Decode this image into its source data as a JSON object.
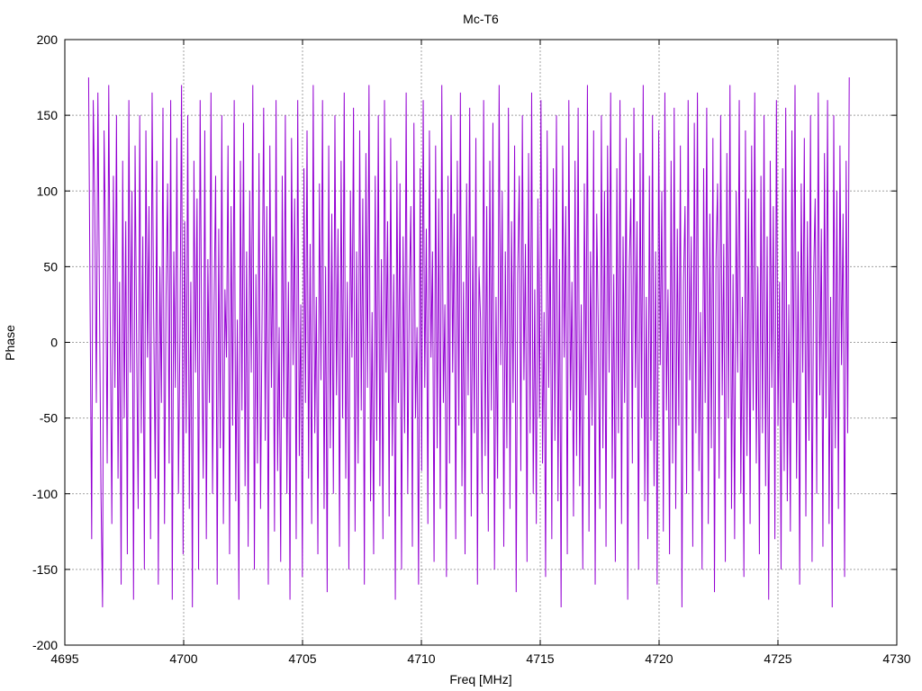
{
  "chart_data": {
    "type": "line",
    "title": "Mc-T6",
    "xlabel": "Freq [MHz]",
    "ylabel": "Phase",
    "xlim": [
      4695,
      4730
    ],
    "ylim": [
      -200,
      200
    ],
    "xticks": [
      4695,
      4700,
      4705,
      4710,
      4715,
      4720,
      4725,
      4730
    ],
    "yticks": [
      -200,
      -150,
      -100,
      -50,
      0,
      50,
      100,
      150,
      200
    ],
    "grid": true,
    "legend": "none",
    "series": [
      {
        "color": "#9400d3",
        "x_start": 4696.0,
        "x_end": 4728.0,
        "x_step": 0.05,
        "note_values": "approximate; signal wraps rapidly between -180 and 180 degrees",
        "values": [
          175,
          20,
          -130,
          160,
          90,
          -40,
          165,
          30,
          -100,
          -175,
          140,
          60,
          -80,
          170,
          10,
          -120,
          110,
          -30,
          150,
          -90,
          40,
          -160,
          120,
          -50,
          80,
          -140,
          160,
          -20,
          100,
          -170,
          130,
          0,
          -110,
          150,
          -60,
          70,
          -150,
          140,
          -10,
          90,
          -130,
          165,
          20,
          -90,
          120,
          -160,
          50,
          -40,
          155,
          -120,
          30,
          105,
          -80,
          160,
          -170,
          60,
          -30,
          135,
          -100,
          10,
          170,
          -140,
          80,
          -60,
          150,
          -110,
          40,
          -175,
          120,
          -20,
          95,
          -150,
          160,
          0,
          -90,
          140,
          -130,
          55,
          -40,
          165,
          -100,
          25,
          110,
          -160,
          75,
          -70,
          150,
          -120,
          35,
          -10,
          130,
          -140,
          90,
          -55,
          160,
          -105,
          15,
          -170,
          120,
          -45,
          145,
          -95,
          60,
          -135,
          100,
          -20,
          170,
          -150,
          45,
          -80,
          125,
          -110,
          20,
          155,
          -65,
          90,
          -160,
          130,
          -30,
          70,
          -125,
          160,
          -85,
          10,
          -145,
          110,
          -50,
          150,
          -100,
          40,
          -170,
          135,
          -15,
          95,
          -130,
          160,
          -75,
          25,
          -155,
          115,
          -40,
          140,
          -90,
          65,
          -120,
          170,
          -60,
          30,
          -140,
          105,
          -25,
          160,
          -110,
          50,
          -165,
          130,
          -70,
          85,
          -100,
          150,
          -35,
          75,
          -135,
          120,
          -50,
          165,
          -90,
          40,
          -150,
          100,
          -10,
          155,
          -125,
          60,
          -80,
          140,
          -45,
          95,
          -160,
          125,
          -30,
          170,
          -105,
          20,
          -140,
          110,
          -65,
          150,
          -95,
          55,
          -130,
          160,
          -20,
          80,
          -115,
          135,
          -75,
          45,
          -170,
          120,
          -40,
          105,
          -150,
          70,
          -60,
          165,
          -100,
          30,
          90,
          -135,
          145,
          -50,
          10,
          -160,
          115,
          -85,
          160,
          -30,
          75,
          -120,
          140,
          -10,
          60,
          -145,
          130,
          -70,
          95,
          -110,
          170,
          -40,
          25,
          -155,
          110,
          -80,
          150,
          -20,
          85,
          -130,
          120,
          -55,
          165,
          -95,
          40,
          -140,
          105,
          -35,
          155,
          -115,
          70,
          -60,
          135,
          -160,
          50,
          15,
          -100,
          160,
          -75,
          90,
          -125,
          120,
          -45,
          145,
          -150,
          30,
          -90,
          170,
          -15,
          100,
          -135,
          60,
          -70,
          155,
          -110,
          80,
          -40,
          130,
          -165,
          45,
          110,
          -85,
          150,
          -25,
          65,
          -145,
          125,
          -60,
          165,
          -100,
          35,
          -120,
          95,
          -50,
          160,
          -80,
          20,
          -155,
          140,
          -30,
          75,
          -130,
          115,
          -65,
          150,
          -105,
          55,
          -175,
          130,
          -10,
          90,
          -140,
          160,
          -45,
          40,
          -115,
          120,
          -75,
          155,
          -95,
          25,
          -150,
          105,
          -35,
          170,
          -125,
          60,
          -55,
          140,
          -160,
          85,
          10,
          -110,
          150,
          -70,
          100,
          -135,
          130,
          -20,
          165,
          -90,
          45,
          -145,
          115,
          -60,
          160,
          -120,
          70,
          -40,
          135,
          -170,
          50,
          95,
          -80,
          155,
          -30,
          80,
          -150,
          125,
          -50,
          170,
          -105,
          30,
          -130,
          110,
          -65,
          150,
          -95,
          60,
          -160,
          140,
          -15,
          100,
          -125,
          165,
          -45,
          35,
          -140,
          120,
          -80,
          155,
          -110,
          75,
          -55,
          130,
          -175,
          40,
          90,
          -100,
          160,
          -25,
          70,
          -135,
          145,
          -60,
          165,
          -85,
          20,
          -150,
          115,
          -40,
          155,
          -120,
          85,
          -70,
          135,
          -165,
          55,
          105,
          -90,
          150,
          -35,
          65,
          -145,
          125,
          -50,
          170,
          -110,
          45,
          -130,
          100,
          -20,
          160,
          -100,
          30,
          -155,
          140,
          -75,
          95,
          -120,
          130,
          -45,
          165,
          -80,
          50,
          -140,
          110,
          -60,
          150,
          -95,
          70,
          -170,
          120,
          -30,
          90,
          -130,
          160,
          -55,
          40,
          -150,
          115,
          -85,
          155,
          -105,
          25,
          -125,
          140,
          -40,
          170,
          -90,
          60,
          -160,
          105,
          -20,
          135,
          -115,
          80,
          -65,
          150,
          -145,
          45,
          95,
          -100,
          165,
          -35,
          75,
          -135,
          125,
          -50,
          160,
          -120,
          30,
          -175,
          150,
          -70,
          100,
          -110,
          130,
          -15,
          85,
          -155,
          120,
          -60,
          175
        ]
      }
    ]
  }
}
